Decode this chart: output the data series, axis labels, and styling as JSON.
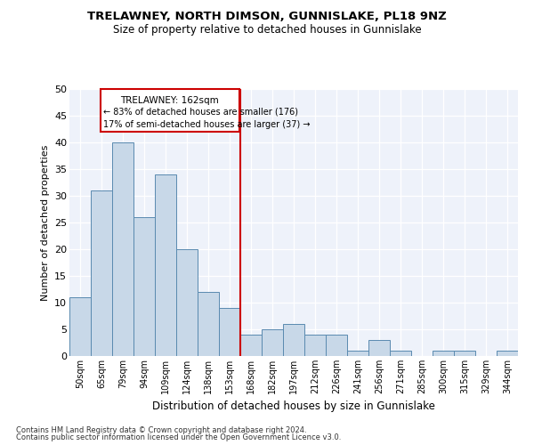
{
  "title": "TRELAWNEY, NORTH DIMSON, GUNNISLAKE, PL18 9NZ",
  "subtitle": "Size of property relative to detached houses in Gunnislake",
  "xlabel": "Distribution of detached houses by size in Gunnislake",
  "ylabel": "Number of detached properties",
  "categories": [
    "50sqm",
    "65sqm",
    "79sqm",
    "94sqm",
    "109sqm",
    "124sqm",
    "138sqm",
    "153sqm",
    "168sqm",
    "182sqm",
    "197sqm",
    "212sqm",
    "226sqm",
    "241sqm",
    "256sqm",
    "271sqm",
    "285sqm",
    "300sqm",
    "315sqm",
    "329sqm",
    "344sqm"
  ],
  "values": [
    11,
    31,
    40,
    26,
    34,
    20,
    12,
    9,
    4,
    5,
    6,
    4,
    4,
    1,
    3,
    1,
    0,
    1,
    1,
    0,
    1
  ],
  "bar_color": "#c8d8e8",
  "bar_edge_color": "#5a8ab0",
  "annotation_text_line1": "TRELAWNEY: 162sqm",
  "annotation_text_line2": "← 83% of detached houses are smaller (176)",
  "annotation_text_line3": "17% of semi-detached houses are larger (37) →",
  "vline_x_index": 7.5,
  "vline_color": "#cc0000",
  "annotation_box_color": "#cc0000",
  "ylim": [
    0,
    50
  ],
  "yticks": [
    0,
    5,
    10,
    15,
    20,
    25,
    30,
    35,
    40,
    45,
    50
  ],
  "footnote1": "Contains HM Land Registry data © Crown copyright and database right 2024.",
  "footnote2": "Contains public sector information licensed under the Open Government Licence v3.0.",
  "background_color": "#eef2fa"
}
